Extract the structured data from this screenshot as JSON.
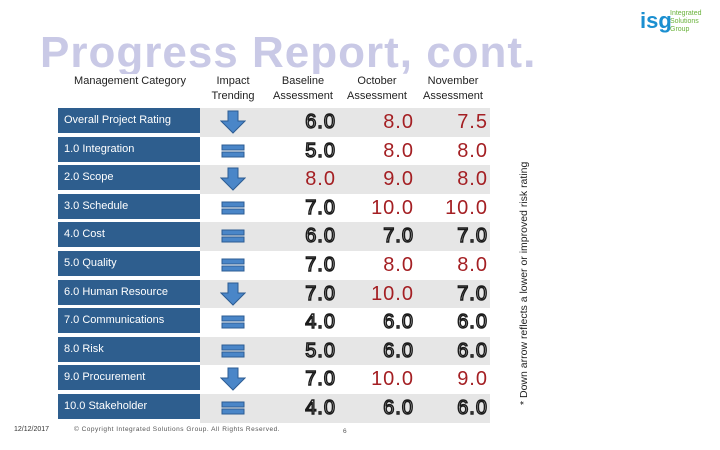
{
  "title": "Progress Report, cont.",
  "logo": {
    "mark": "isg",
    "text": "Integrated\nSolutions\nGroup"
  },
  "headers": {
    "category": "Management Category",
    "trending": "Impact Trending",
    "baseline": "Baseline Assessment",
    "october": "October Assessment",
    "november": "November Assessment"
  },
  "rows": [
    {
      "category": "Overall Project Rating",
      "trend": "down",
      "baseline": "6.0",
      "october": "8.0",
      "november": "7.5",
      "red": [
        "october",
        "november"
      ]
    },
    {
      "category": "1.0 Integration",
      "trend": "flat",
      "baseline": "5.0",
      "october": "8.0",
      "november": "8.0",
      "red": [
        "october",
        "november"
      ]
    },
    {
      "category": "2.0 Scope",
      "trend": "down",
      "baseline": "8.0",
      "october": "9.0",
      "november": "8.0",
      "red": [
        "baseline",
        "october",
        "november"
      ]
    },
    {
      "category": "3.0 Schedule",
      "trend": "flat",
      "baseline": "7.0",
      "october": "10.0",
      "november": "10.0",
      "red": [
        "october",
        "november"
      ]
    },
    {
      "category": "4.0 Cost",
      "trend": "flat",
      "baseline": "6.0",
      "october": "7.0",
      "november": "7.0",
      "red": []
    },
    {
      "category": "5.0 Quality",
      "trend": "flat",
      "baseline": "7.0",
      "october": "8.0",
      "november": "8.0",
      "red": [
        "october",
        "november"
      ]
    },
    {
      "category": "6.0 Human Resource",
      "trend": "down",
      "baseline": "7.0",
      "october": "10.0",
      "november": "7.0",
      "red": [
        "october"
      ]
    },
    {
      "category": "7.0 Communications",
      "trend": "flat",
      "baseline": "4.0",
      "october": "6.0",
      "november": "6.0",
      "red": []
    },
    {
      "category": "8.0 Risk",
      "trend": "flat",
      "baseline": "5.0",
      "october": "6.0",
      "november": "6.0",
      "red": []
    },
    {
      "category": "9.0 Procurement",
      "trend": "down",
      "baseline": "7.0",
      "october": "10.0",
      "november": "9.0",
      "red": [
        "october",
        "november"
      ]
    },
    {
      "category": "10.0 Stakeholder",
      "trend": "flat",
      "baseline": "4.0",
      "october": "6.0",
      "november": "6.0",
      "red": []
    }
  ],
  "side_note": "* Down arrow reflects a lower or improved risk rating",
  "footer": {
    "date": "12/12/2017",
    "copyright": "© Copyright Integrated Solutions Group. All Rights Reserved.",
    "page": "6"
  },
  "colors": {
    "category_bg": "#2e5e8e",
    "red_value": "#a41f23",
    "arrow": "#4a86c8",
    "stripe": "#e6e6e6"
  }
}
